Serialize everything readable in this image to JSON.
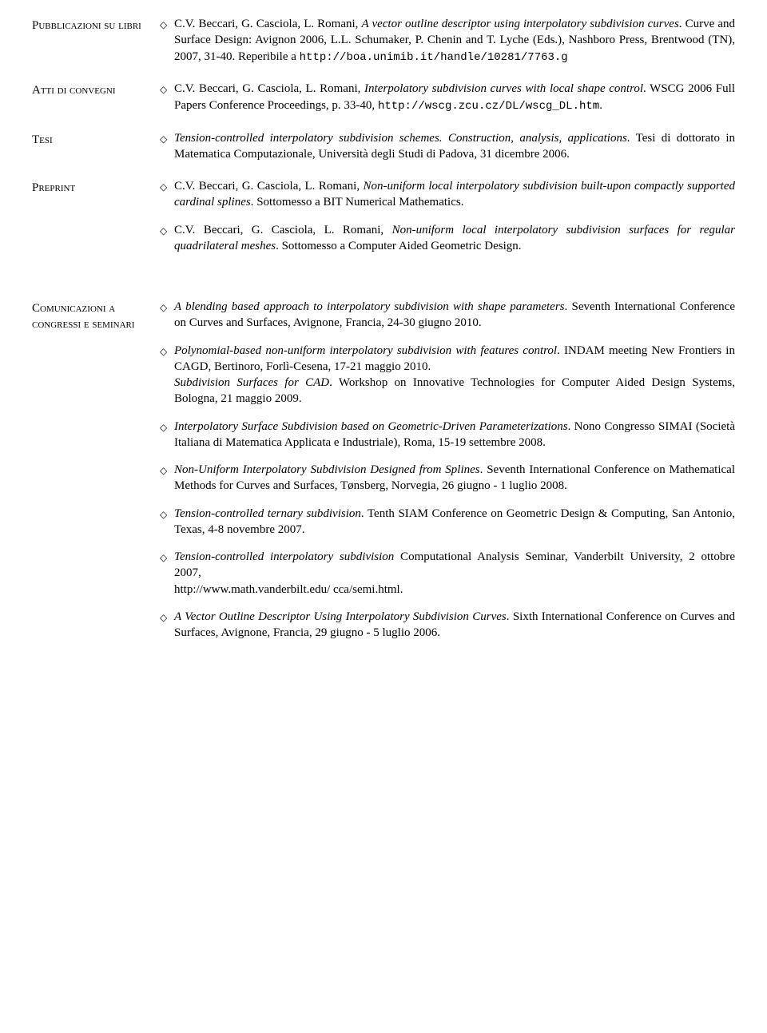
{
  "sections": {
    "pubblicazioni": {
      "label": "Pubblicazioni su libri"
    },
    "atti": {
      "label": "Atti di convegni"
    },
    "tesi": {
      "label": "Tesi"
    },
    "preprint": {
      "label": "Preprint"
    },
    "comunicazioni": {
      "label": "Comunicazioni a congressi e seminari"
    }
  },
  "entries": {
    "pub1_a": "C.V. Beccari, G. Casciola, L. Romani, ",
    "pub1_b": "A vector outline descriptor using interpolatory subdivision curves",
    "pub1_c": ". Curve and Surface Design: Avignon 2006, L.L. Schumaker, P. Chenin and T. Lyche (Eds.), Nashboro Press, Brentwood (TN), 2007, 31-40. Reperibile a ",
    "pub1_d": "http://boa.unimib.it/handle/10281/7763.g",
    "atti1_a": "C.V. Beccari, G. Casciola, L. Romani, ",
    "atti1_b": "Interpolatory subdivision curves with local shape control",
    "atti1_c": ". WSCG 2006 Full Papers Conference Proceedings, p. 33-40, ",
    "atti1_d": "http://wscg.zcu.cz/DL/wscg_DL.htm",
    "atti1_e": ".",
    "tesi1_a": "Tension-controlled interpolatory subdivision schemes. Construction, analysis, applications",
    "tesi1_b": ". Tesi di dottorato in Matematica Computazionale, Università degli Studi di Padova, 31 dicembre 2006.",
    "pre1_a": "C.V. Beccari, G. Casciola, L. Romani, ",
    "pre1_b": "Non-uniform local interpolatory subdivision built-upon compactly supported cardinal splines",
    "pre1_c": ". Sottomesso a BIT Numerical Mathematics.",
    "pre2_a": "C.V. Beccari, G. Casciola, L. Romani, ",
    "pre2_b": "Non-uniform local interpolatory subdivision surfaces for regular quadrilateral meshes",
    "pre2_c": ". Sottomesso a Computer Aided Geometric Design.",
    "com1_a": "A blending based approach to interpolatory subdivision with shape parameters",
    "com1_b": ". Seventh International Conference on Curves and Surfaces, Avignone, Francia, 24-30 giugno 2010.",
    "com2_a": "Polynomial-based non-uniform interpolatory subdivision with features control",
    "com2_b": ". INDAM meeting New Frontiers in CAGD, Bertinoro, Forlì-Cesena, 17-21 maggio 2010.",
    "com2_c": "Subdivision Surfaces for CAD",
    "com2_d": ". Workshop on Innovative Technologies for Computer Aided Design Systems, Bologna, 21 maggio 2009.",
    "com3_a": "Interpolatory Surface Subdivision based on Geometric-Driven Parameterizations",
    "com3_b": ". Nono Congresso SIMAI (Società Italiana di Matematica Applicata e Industriale), Roma, 15-19 settembre 2008.",
    "com4_a": "Non-Uniform Interpolatory Subdivision Designed from Splines",
    "com4_b": ". Seventh International Conference on Mathematical Methods for Curves and Surfaces, Tønsberg, Norvegia, 26 giugno - 1 luglio 2008.",
    "com5_a": "Tension-controlled ternary subdivision",
    "com5_b": ". Tenth SIAM Conference on Geometric Design & Computing, San Antonio, Texas, 4-8 novembre 2007.",
    "com6_a": "Tension-controlled interpolatory subdivision",
    "com6_b": " Computational Analysis Seminar, Vanderbilt University, 2 ottobre 2007,",
    "com6_c": "http://www.math.vanderbilt.edu/ cca/semi.html.",
    "com7_a": "A Vector Outline Descriptor Using Interpolatory Subdivision Curves",
    "com7_b": ". Sixth International Conference on Curves and Surfaces, Avignone, Francia, 29 giugno - 5 luglio 2006."
  }
}
